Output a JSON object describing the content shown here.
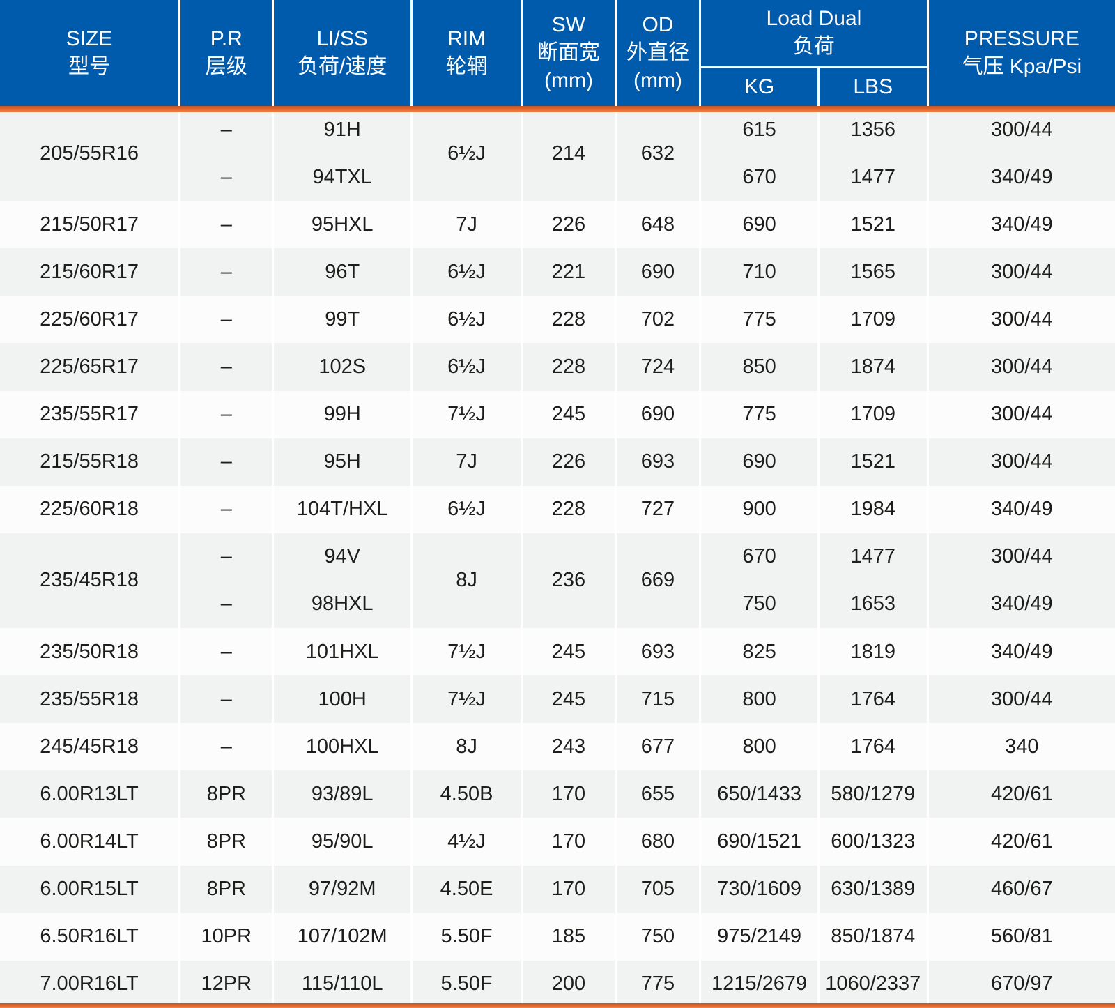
{
  "colors": {
    "header_bg": "#005bac",
    "header_text": "#ffffff",
    "accent_orange": "#e4672e",
    "row_gray": "#f1f2f2",
    "row_white": "#fcfcfc",
    "body_text": "#1d1d1b"
  },
  "header": {
    "size": "SIZE\n型号",
    "pr": "P.R\n层级",
    "li_ss": "LI/SS\n负荷/速度",
    "rim": "RIM\n轮辋",
    "sw": "SW\n断面宽\n(mm)",
    "od": "OD\n外直径\n(mm)",
    "load_dual": "Load Dual\n负荷",
    "kg": "KG",
    "lbs": "LBS",
    "pressure": "PRESSURE\n气压 Kpa/Psi"
  },
  "rows": [
    {
      "size": "205/55R16",
      "rim": "6½J",
      "sw": "214",
      "od": "632",
      "variants": [
        {
          "pr": "–",
          "li_ss": "91H",
          "kg": "615",
          "lbs": "1356",
          "pressure": "300/44"
        },
        {
          "pr": "–",
          "li_ss": "94TXL",
          "kg": "670",
          "lbs": "1477",
          "pressure": "340/49"
        }
      ]
    },
    {
      "size": "215/50R17",
      "rim": "7J",
      "sw": "226",
      "od": "648",
      "variants": [
        {
          "pr": "–",
          "li_ss": "95HXL",
          "kg": "690",
          "lbs": "1521",
          "pressure": "340/49"
        }
      ]
    },
    {
      "size": "215/60R17",
      "rim": "6½J",
      "sw": "221",
      "od": "690",
      "variants": [
        {
          "pr": "–",
          "li_ss": "96T",
          "kg": "710",
          "lbs": "1565",
          "pressure": "300/44"
        }
      ]
    },
    {
      "size": "225/60R17",
      "rim": "6½J",
      "sw": "228",
      "od": "702",
      "variants": [
        {
          "pr": "–",
          "li_ss": "99T",
          "kg": "775",
          "lbs": "1709",
          "pressure": "300/44"
        }
      ]
    },
    {
      "size": "225/65R17",
      "rim": "6½J",
      "sw": "228",
      "od": "724",
      "variants": [
        {
          "pr": "–",
          "li_ss": "102S",
          "kg": "850",
          "lbs": "1874",
          "pressure": "300/44"
        }
      ]
    },
    {
      "size": "235/55R17",
      "rim": "7½J",
      "sw": "245",
      "od": "690",
      "variants": [
        {
          "pr": "–",
          "li_ss": "99H",
          "kg": "775",
          "lbs": "1709",
          "pressure": "300/44"
        }
      ]
    },
    {
      "size": "215/55R18",
      "rim": "7J",
      "sw": "226",
      "od": "693",
      "variants": [
        {
          "pr": "–",
          "li_ss": "95H",
          "kg": "690",
          "lbs": "1521",
          "pressure": "300/44"
        }
      ]
    },
    {
      "size": "225/60R18",
      "rim": "6½J",
      "sw": "228",
      "od": "727",
      "variants": [
        {
          "pr": "–",
          "li_ss": "104T/HXL",
          "kg": "900",
          "lbs": "1984",
          "pressure": "340/49"
        }
      ]
    },
    {
      "size": "235/45R18",
      "rim": "8J",
      "sw": "236",
      "od": "669",
      "variants": [
        {
          "pr": "–",
          "li_ss": "94V",
          "kg": "670",
          "lbs": "1477",
          "pressure": "300/44"
        },
        {
          "pr": "–",
          "li_ss": "98HXL",
          "kg": "750",
          "lbs": "1653",
          "pressure": "340/49"
        }
      ]
    },
    {
      "size": "235/50R18",
      "rim": "7½J",
      "sw": "245",
      "od": "693",
      "variants": [
        {
          "pr": "–",
          "li_ss": "101HXL",
          "kg": "825",
          "lbs": "1819",
          "pressure": "340/49"
        }
      ]
    },
    {
      "size": "235/55R18",
      "rim": "7½J",
      "sw": "245",
      "od": "715",
      "variants": [
        {
          "pr": "–",
          "li_ss": "100H",
          "kg": "800",
          "lbs": "1764",
          "pressure": "300/44"
        }
      ]
    },
    {
      "size": "245/45R18",
      "rim": "8J",
      "sw": "243",
      "od": "677",
      "variants": [
        {
          "pr": "–",
          "li_ss": "100HXL",
          "kg": "800",
          "lbs": "1764",
          "pressure": "340"
        }
      ]
    },
    {
      "size": "6.00R13LT",
      "rim": "4.50B",
      "sw": "170",
      "od": "655",
      "variants": [
        {
          "pr": "8PR",
          "li_ss": "93/89L",
          "kg": "650/1433",
          "lbs": "580/1279",
          "pressure": "420/61"
        }
      ]
    },
    {
      "size": "6.00R14LT",
      "rim": "4½J",
      "sw": "170",
      "od": "680",
      "variants": [
        {
          "pr": "8PR",
          "li_ss": "95/90L",
          "kg": "690/1521",
          "lbs": "600/1323",
          "pressure": "420/61"
        }
      ]
    },
    {
      "size": "6.00R15LT",
      "rim": "4.50E",
      "sw": "170",
      "od": "705",
      "variants": [
        {
          "pr": "8PR",
          "li_ss": "97/92M",
          "kg": "730/1609",
          "lbs": "630/1389",
          "pressure": "460/67"
        }
      ]
    },
    {
      "size": "6.50R16LT",
      "rim": "5.50F",
      "sw": "185",
      "od": "750",
      "variants": [
        {
          "pr": "10PR",
          "li_ss": "107/102M",
          "kg": "975/2149",
          "lbs": "850/1874",
          "pressure": "560/81"
        }
      ]
    },
    {
      "size": "7.00R16LT",
      "rim": "5.50F",
      "sw": "200",
      "od": "775",
      "variants": [
        {
          "pr": "12PR",
          "li_ss": "115/110L",
          "kg": "1215/2679",
          "lbs": "1060/2337",
          "pressure": "670/97"
        }
      ]
    }
  ]
}
